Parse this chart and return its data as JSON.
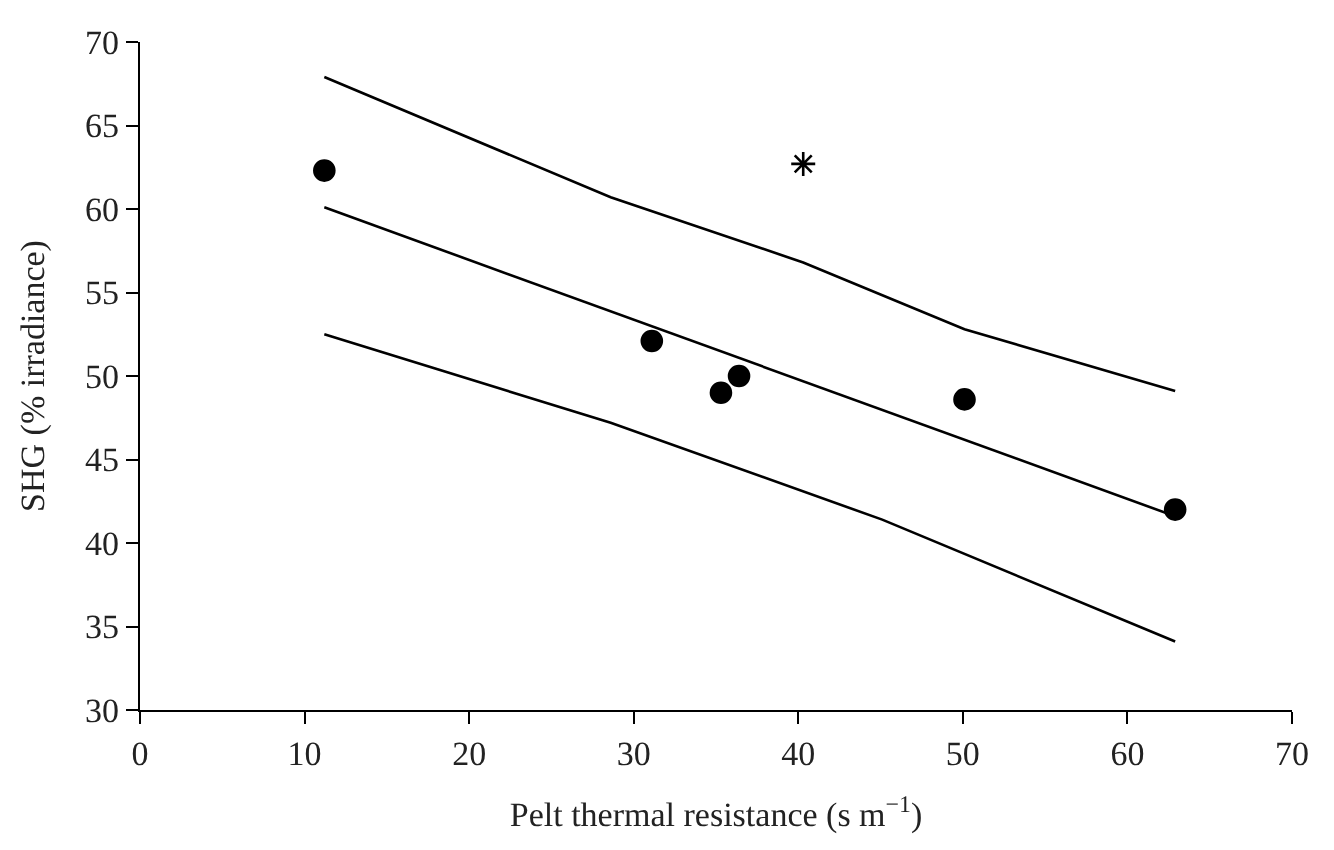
{
  "chart_data": {
    "type": "scatter",
    "xlabel": "Pelt thermal resistance (s m$^{−1}$)",
    "ylabel": "SHG (% irradiance)",
    "xlim": [
      0,
      70
    ],
    "xticks": [
      0,
      10,
      20,
      30,
      40,
      50,
      60,
      70
    ],
    "ylim": [
      30,
      70
    ],
    "yticks": [
      30,
      35,
      40,
      45,
      50,
      55,
      60,
      65,
      70
    ],
    "series": [
      {
        "marker": "circle",
        "color": "#000000",
        "x": [
          11.2,
          31.1,
          35.3,
          36.4,
          50.1,
          62.9
        ],
        "values": [
          62.3,
          52.1,
          49.0,
          50.0,
          48.6,
          42.0
        ]
      },
      {
        "type": "scatter",
        "marker": "cross",
        "color": "#000000",
        "x": [
          40.3
        ],
        "values": [
          62.7
        ]
      },
      {
        "type": "line",
        "marker": "none",
        "line_style": "solid",
        "color": "#000000",
        "x": [
          11.2,
          62.9
        ],
        "values": [
          60.1,
          41.6
        ]
      },
      {
        "type": "line",
        "marker": "none",
        "line_style": "solid",
        "color": "#000000",
        "x": [
          11.2,
          28.6,
          40.3,
          50.1,
          62.9
        ],
        "values": [
          67.9,
          60.7,
          56.8,
          52.8,
          49.1
        ]
      },
      {
        "type": "line",
        "marker": "none",
        "line_style": "solid",
        "color": "#000000",
        "x": [
          11.2,
          28.6,
          45.1,
          62.9
        ],
        "values": [
          52.5,
          47.2,
          41.4,
          34.1
        ]
      }
    ]
  }
}
